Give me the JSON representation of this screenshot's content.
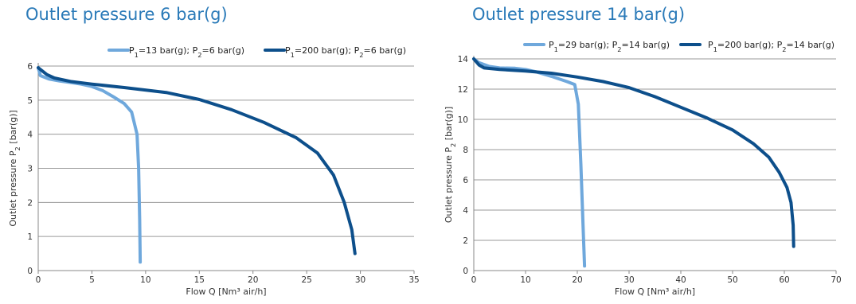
{
  "chart_data": [
    {
      "type": "line",
      "title": "Outlet pressure 6 bar(g)",
      "xlabel": "Flow Q [Nm³ air/h]",
      "ylabel": "Outlet pressure P₂ [bar(g)]",
      "xlim": [
        0,
        35
      ],
      "ylim": [
        0,
        6
      ],
      "xticks": [
        0,
        5,
        10,
        15,
        20,
        25,
        30,
        35
      ],
      "yticks": [
        0,
        1,
        2,
        3,
        4,
        5,
        6
      ],
      "grid": "horizontal",
      "legend": "top-right",
      "series": [
        {
          "name": "P₁=13 bar(g); P₂=6 bar(g)",
          "color": "#6fa8dc",
          "x": [
            0,
            0.2,
            1,
            2,
            3,
            4,
            5,
            6,
            7,
            8,
            8.7,
            9.2,
            9.35,
            9.45,
            9.5
          ],
          "y": [
            5.95,
            5.72,
            5.62,
            5.56,
            5.52,
            5.47,
            5.4,
            5.28,
            5.1,
            4.9,
            4.65,
            4.0,
            3.0,
            1.5,
            0.25
          ]
        },
        {
          "name": "P₁=200 bar(g); P₂=6 bar(g)",
          "color": "#0d4f8b",
          "x": [
            0,
            0.8,
            1.5,
            3,
            5,
            8,
            12,
            15,
            18,
            21,
            24,
            26,
            27.5,
            28.5,
            29.2,
            29.5
          ],
          "y": [
            5.95,
            5.75,
            5.65,
            5.55,
            5.47,
            5.37,
            5.22,
            5.02,
            4.72,
            4.35,
            3.9,
            3.45,
            2.8,
            2.0,
            1.2,
            0.5
          ]
        }
      ]
    },
    {
      "type": "line",
      "title": "Outlet pressure 14 bar(g)",
      "xlabel": "Flow Q [Nm³ air/h]",
      "ylabel": "Outlet pressure P₂ [bar(g)]",
      "xlim": [
        0,
        70
      ],
      "ylim": [
        0,
        14
      ],
      "xticks": [
        0,
        10,
        20,
        30,
        40,
        50,
        60,
        70
      ],
      "yticks": [
        0,
        2,
        4,
        6,
        8,
        10,
        12,
        14
      ],
      "grid": "horizontal",
      "legend": "top-right",
      "series": [
        {
          "name": "P₁=29 bar(g); P₂=14 bar(g)",
          "color": "#6fa8dc",
          "x": [
            0,
            1,
            3,
            5,
            8,
            10,
            12,
            15,
            18,
            19.5,
            20.2,
            20.7,
            21.1,
            21.4
          ],
          "y": [
            14,
            13.75,
            13.5,
            13.4,
            13.38,
            13.3,
            13.15,
            12.85,
            12.5,
            12.3,
            11.0,
            7.0,
            3.0,
            0.3
          ]
        },
        {
          "name": "P₁=200 bar(g); P₂=14 bar(g)",
          "color": "#0d4f8b",
          "x": [
            0,
            1,
            2,
            5,
            10,
            15,
            20,
            25,
            30,
            35,
            40,
            45,
            50,
            54,
            57,
            59,
            60.5,
            61.3,
            61.7,
            61.8
          ],
          "y": [
            14,
            13.6,
            13.4,
            13.3,
            13.2,
            13.05,
            12.8,
            12.5,
            12.1,
            11.5,
            10.8,
            10.1,
            9.3,
            8.4,
            7.5,
            6.5,
            5.5,
            4.5,
            3.0,
            1.6
          ]
        }
      ]
    }
  ]
}
